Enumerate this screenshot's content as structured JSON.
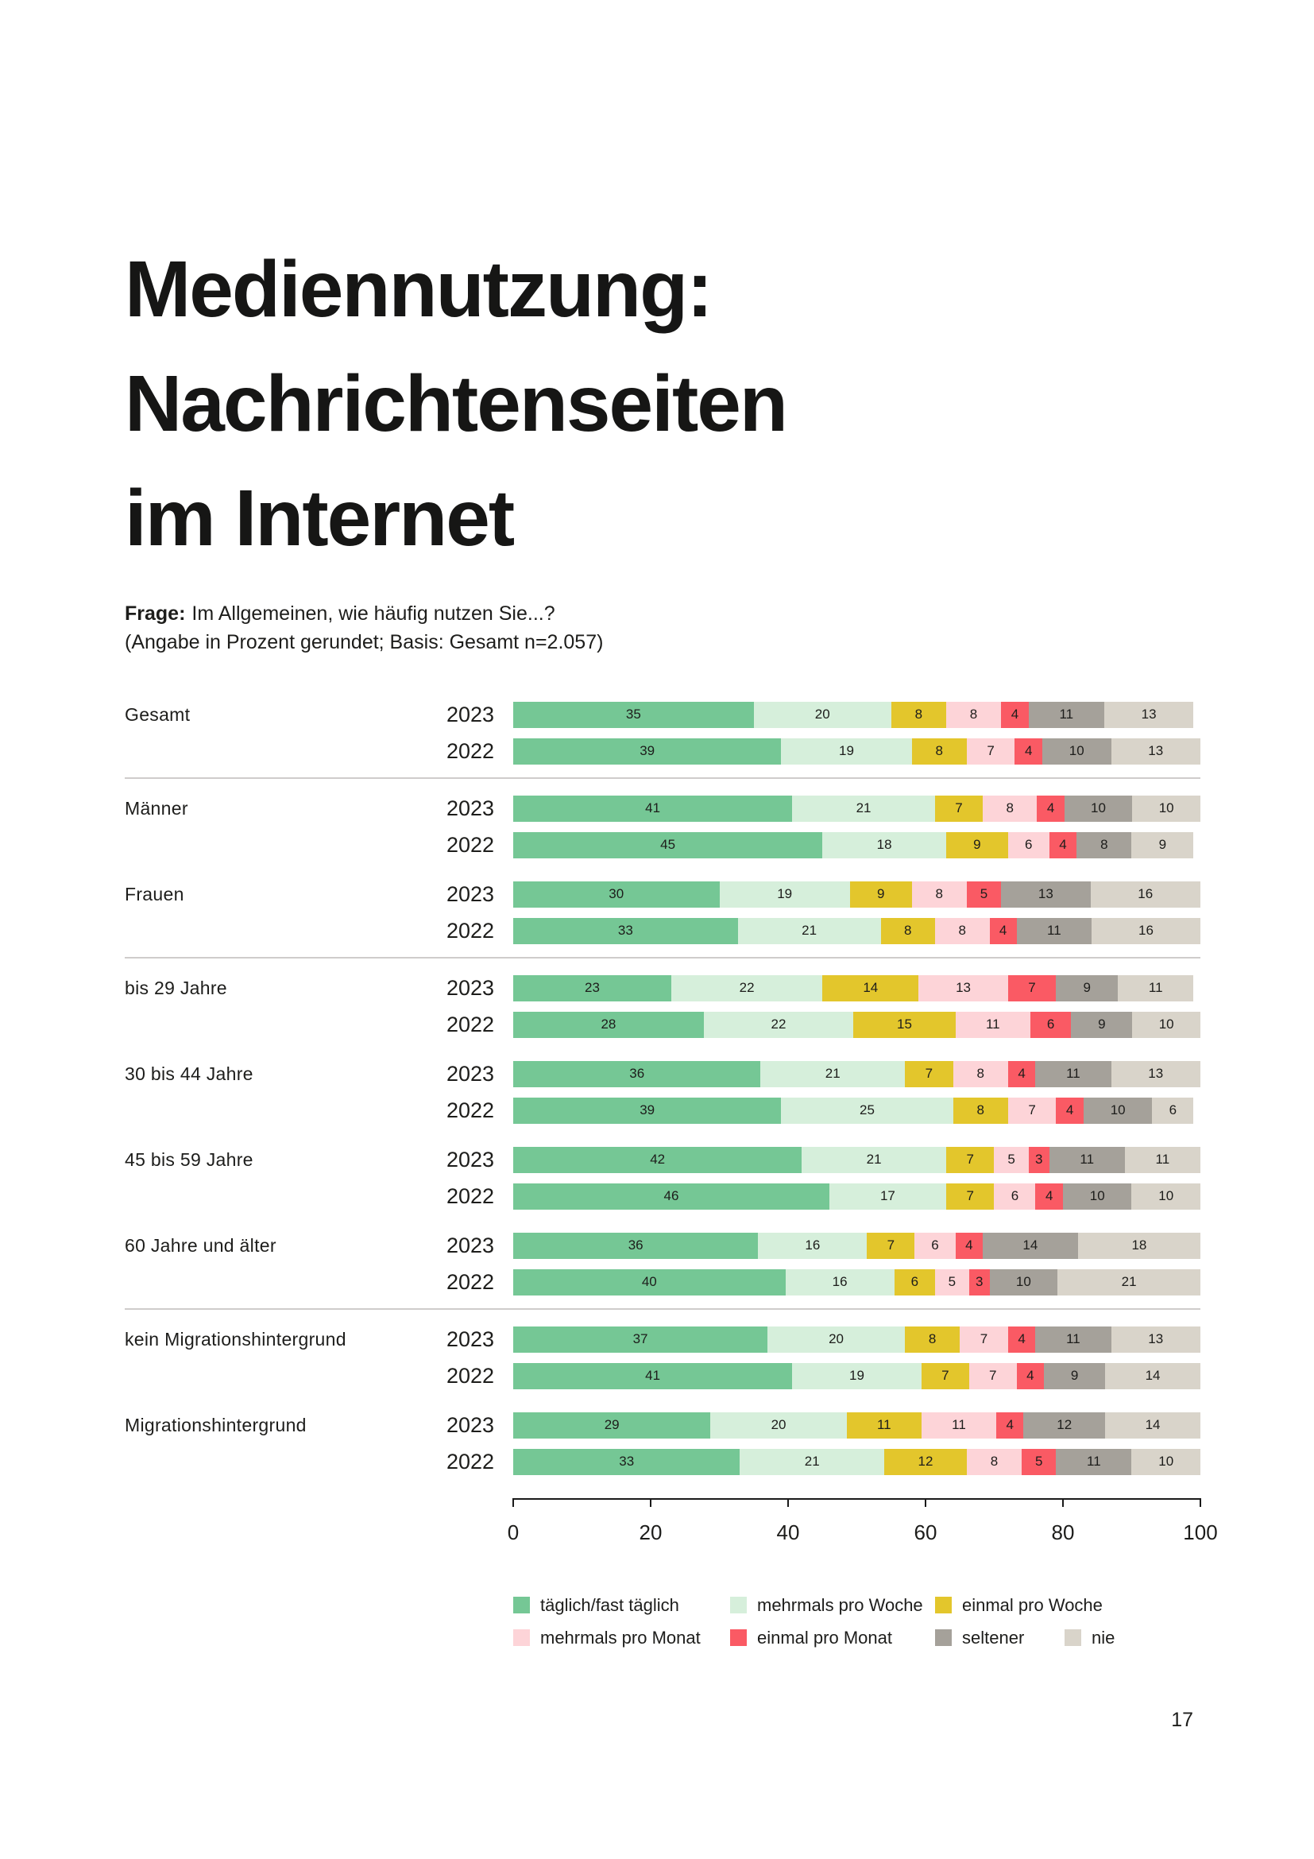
{
  "page": {
    "title_lines": [
      "Mediennutzung:",
      "Nachrichtenseiten",
      "im Internet"
    ],
    "question_label": "Frage:",
    "question_text": "Im Allgemeinen, wie häufig nutzen Sie...?",
    "basis": "(Angabe in Prozent gerundet; Basis: Gesamt n=2.057)",
    "page_number": "17"
  },
  "chart_data": {
    "type": "bar",
    "orientation": "horizontal",
    "stacked": true,
    "value_unit": "percent",
    "title": "Mediennutzung: Nachrichtenseiten im Internet",
    "axis": {
      "min": 0,
      "max": 100,
      "ticks": [
        0,
        20,
        40,
        60,
        80,
        100
      ]
    },
    "grid": false,
    "legend_position": "bottom",
    "series": [
      {
        "key": "taeglich-fast-taeglich",
        "name": "täglich/fast täglich",
        "color": "#75c795"
      },
      {
        "key": "mehrmals-pro-woche",
        "name": "mehrmals pro Woche",
        "color": "#d6efdb"
      },
      {
        "key": "einmal-pro-woche",
        "name": "einmal pro Woche",
        "color": "#e3c62c"
      },
      {
        "key": "mehrmals-pro-monat",
        "name": "mehrmals pro Monat",
        "color": "#fdd4d8"
      },
      {
        "key": "einmal-pro-monat",
        "name": "einmal pro Monat",
        "color": "#fa5a64"
      },
      {
        "key": "seltener",
        "name": "seltener",
        "color": "#a5a19a"
      },
      {
        "key": "nie",
        "name": "nie",
        "color": "#d9d4ca"
      }
    ],
    "legend_rows": [
      [
        0,
        1,
        2
      ],
      [
        3,
        4,
        5,
        6
      ]
    ],
    "groups": [
      {
        "label": "Gesamt",
        "divider_after": true,
        "rows": [
          {
            "year": "2023",
            "values": [
              35,
              20,
              8,
              8,
              4,
              11,
              13
            ]
          },
          {
            "year": "2022",
            "values": [
              39,
              19,
              8,
              7,
              4,
              10,
              13
            ]
          }
        ]
      },
      {
        "label": "Männer",
        "divider_after": false,
        "rows": [
          {
            "year": "2023",
            "values": [
              41,
              21,
              7,
              8,
              4,
              10,
              10
            ]
          },
          {
            "year": "2022",
            "values": [
              45,
              18,
              9,
              6,
              4,
              8,
              9
            ]
          }
        ]
      },
      {
        "label": "Frauen",
        "divider_after": true,
        "rows": [
          {
            "year": "2023",
            "values": [
              30,
              19,
              9,
              8,
              5,
              13,
              16
            ]
          },
          {
            "year": "2022",
            "values": [
              33,
              21,
              8,
              8,
              4,
              11,
              16
            ]
          }
        ]
      },
      {
        "label": "bis 29 Jahre",
        "divider_after": false,
        "rows": [
          {
            "year": "2023",
            "values": [
              23,
              22,
              14,
              13,
              7,
              9,
              11
            ]
          },
          {
            "year": "2022",
            "values": [
              28,
              22,
              15,
              11,
              6,
              9,
              10
            ]
          }
        ]
      },
      {
        "label": "30 bis 44 Jahre",
        "divider_after": false,
        "rows": [
          {
            "year": "2023",
            "values": [
              36,
              21,
              7,
              8,
              4,
              11,
              13
            ]
          },
          {
            "year": "2022",
            "values": [
              39,
              25,
              8,
              7,
              4,
              10,
              6
            ]
          }
        ]
      },
      {
        "label": "45 bis 59 Jahre",
        "divider_after": false,
        "rows": [
          {
            "year": "2023",
            "values": [
              42,
              21,
              7,
              5,
              3,
              11,
              11
            ]
          },
          {
            "year": "2022",
            "values": [
              46,
              17,
              7,
              6,
              4,
              10,
              10
            ]
          }
        ]
      },
      {
        "label": "60 Jahre und älter",
        "divider_after": true,
        "rows": [
          {
            "year": "2023",
            "values": [
              36,
              16,
              7,
              6,
              4,
              14,
              18
            ]
          },
          {
            "year": "2022",
            "values": [
              40,
              16,
              6,
              5,
              3,
              10,
              21
            ]
          }
        ]
      },
      {
        "label": "kein Migrationshintergrund",
        "divider_after": false,
        "rows": [
          {
            "year": "2023",
            "values": [
              37,
              20,
              8,
              7,
              4,
              11,
              13
            ]
          },
          {
            "year": "2022",
            "values": [
              41,
              19,
              7,
              7,
              4,
              9,
              14
            ]
          }
        ]
      },
      {
        "label": "Migrationshintergrund",
        "divider_after": false,
        "rows": [
          {
            "year": "2023",
            "values": [
              29,
              20,
              11,
              11,
              4,
              12,
              14
            ]
          },
          {
            "year": "2022",
            "values": [
              33,
              21,
              12,
              8,
              5,
              11,
              10
            ]
          }
        ]
      }
    ]
  }
}
